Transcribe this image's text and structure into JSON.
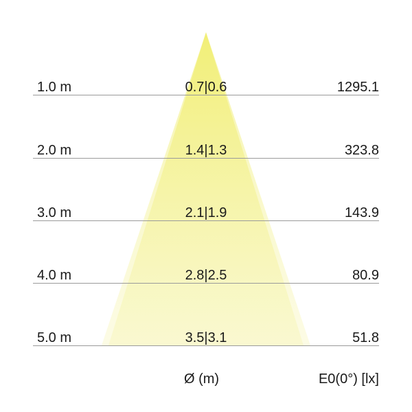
{
  "colors": {
    "cone": "#f2f07a",
    "rule": "#9a9a9a"
  },
  "rows": [
    {
      "distance": "1.0 m",
      "diameter": "0.7|0.6",
      "illuminance": "1295.1"
    },
    {
      "distance": "2.0 m",
      "diameter": "1.4|1.3",
      "illuminance": "323.8"
    },
    {
      "distance": "3.0 m",
      "diameter": "2.1|1.9",
      "illuminance": "143.9"
    },
    {
      "distance": "4.0 m",
      "diameter": "2.8|2.5",
      "illuminance": "80.9"
    },
    {
      "distance": "5.0 m",
      "diameter": "3.5|3.1",
      "illuminance": "51.8"
    }
  ],
  "footer": {
    "diameter_label": "Ø (m)",
    "illuminance_label": "E0(0°) [lx]"
  }
}
